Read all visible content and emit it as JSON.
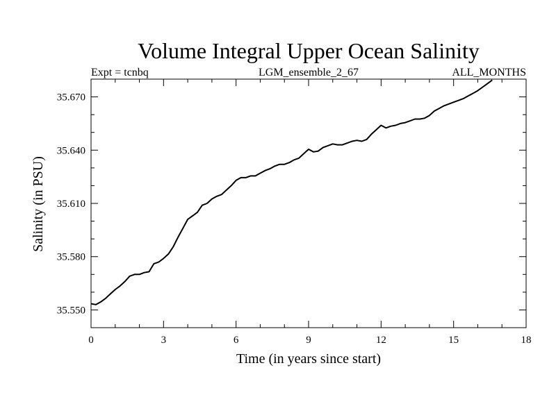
{
  "chart_data": {
    "type": "line",
    "title": "Volume Integral Upper Ocean Salinity",
    "subtitle_left": "Expt = tcnbq",
    "subtitle_center": "LGM_ensemble_2_67",
    "subtitle_right": "ALL_MONTHS",
    "xlabel": "Time (in years since start)",
    "ylabel": "Salinity (in PSU)",
    "xlim": [
      0,
      18
    ],
    "ylim": [
      35.54,
      35.68
    ],
    "xticks": [
      0,
      3,
      6,
      9,
      12,
      15,
      18
    ],
    "xtick_labels": [
      "0",
      "3",
      "6",
      "9",
      "12",
      "15",
      "18"
    ],
    "yticks": [
      35.55,
      35.58,
      35.61,
      35.64,
      35.67
    ],
    "ytick_labels": [
      "35.550",
      "35.580",
      "35.610",
      "35.640",
      "35.670"
    ],
    "grid": false,
    "series": [
      {
        "name": "Salinity",
        "color": "#000000",
        "x": [
          0,
          0.2,
          0.4,
          0.6,
          0.8,
          1.0,
          1.2,
          1.4,
          1.6,
          1.8,
          2.0,
          2.2,
          2.4,
          2.6,
          2.8,
          3.0,
          3.2,
          3.4,
          3.6,
          3.8,
          4.0,
          4.2,
          4.4,
          4.6,
          4.8,
          5.0,
          5.2,
          5.4,
          5.6,
          5.8,
          6.0,
          6.2,
          6.4,
          6.6,
          6.8,
          7.0,
          7.2,
          7.4,
          7.6,
          7.8,
          8.0,
          8.2,
          8.4,
          8.6,
          8.8,
          9.0,
          9.2,
          9.4,
          9.6,
          9.8,
          10.0,
          10.2,
          10.4,
          10.6,
          10.8,
          11.0,
          11.2,
          11.4,
          11.6,
          11.8,
          12.0,
          12.2,
          12.4,
          12.6,
          12.8,
          13.0,
          13.2,
          13.4,
          13.6,
          13.8,
          14.0,
          14.2,
          14.4,
          14.6,
          14.8,
          15.0,
          15.2,
          15.4,
          15.6,
          15.8,
          16.0,
          16.2,
          16.4,
          16.6
        ],
        "y": [
          35.5535,
          35.553,
          35.5545,
          35.5565,
          35.559,
          35.5615,
          35.5635,
          35.566,
          35.569,
          35.57,
          35.57,
          35.571,
          35.5715,
          35.576,
          35.577,
          35.579,
          35.5815,
          35.5855,
          35.591,
          35.596,
          35.601,
          35.603,
          35.605,
          35.609,
          35.61,
          35.6125,
          35.614,
          35.615,
          35.6175,
          35.62,
          35.623,
          35.6245,
          35.6245,
          35.6255,
          35.6255,
          35.627,
          35.6285,
          35.6295,
          35.631,
          35.632,
          35.632,
          35.633,
          35.6345,
          35.6355,
          35.638,
          35.6405,
          35.639,
          35.6395,
          35.6415,
          35.6425,
          35.6435,
          35.643,
          35.643,
          35.644,
          35.645,
          35.6455,
          35.645,
          35.646,
          35.649,
          35.6515,
          35.654,
          35.6525,
          35.6535,
          35.654,
          35.655,
          35.6555,
          35.6565,
          35.6575,
          35.6575,
          35.658,
          35.6595,
          35.662,
          35.6635,
          35.665,
          35.666,
          35.667,
          35.668,
          35.669,
          35.6705,
          35.672,
          35.6735,
          35.6755,
          35.6775,
          35.6795
        ]
      }
    ]
  }
}
